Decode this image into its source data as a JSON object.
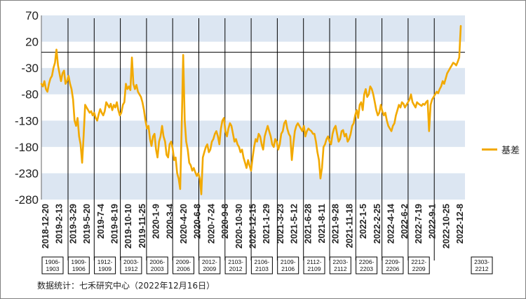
{
  "chart_data": {
    "type": "line",
    "ylim": [
      -280,
      70
    ],
    "yticks": [
      70,
      20,
      -30,
      -80,
      -130,
      -180,
      -230,
      -280
    ],
    "bands": [
      [
        20,
        70
      ],
      [
        -80,
        -30
      ],
      [
        -180,
        -130
      ],
      [
        -280,
        -230
      ]
    ],
    "zero_line": true,
    "x_tick_labels": [
      "2018-12-20",
      "2019-2-13",
      "2019-3-29",
      "2019-5-20",
      "2019-7-4",
      "2019-8-19",
      "2019-10-10",
      "2019-11-25",
      "2020-1-9",
      "2020-3-4",
      "2020-4-20",
      "2020-6-8",
      "2020-7-24",
      "2020-9-8",
      "2020-10-30",
      "2020-12-15",
      "2021-1-29",
      "2021-3-23",
      "2021-5-12",
      "2021-6-28",
      "2021-8-11",
      "2021-9-28",
      "2021-11-18",
      "2022-1-5",
      "2022-2-25",
      "2022-4-14",
      "2022-6-2",
      "2022-7-19",
      "2022-9-1",
      "2022-10-25",
      "2022-12-8"
    ],
    "contracts": [
      "1906-1903",
      "1909-1906",
      "1912-1909",
      "2003-1912",
      "2006-2003",
      "2009-2006",
      "2012-2009",
      "2103-2012",
      "2106-2103",
      "2109-2106",
      "2112-2109",
      "2203-2112",
      "2206-2203",
      "2209-2206",
      "2212-2209",
      "2303-2212"
    ],
    "series": [
      {
        "name": "基差",
        "color": "#F2A900",
        "values": [
          -60,
          -65,
          -55,
          -70,
          -75,
          -60,
          -50,
          -45,
          -30,
          -20,
          5,
          -25,
          -40,
          -55,
          -40,
          -35,
          -60,
          -55,
          -45,
          -60,
          -70,
          -90,
          -130,
          -140,
          -125,
          -160,
          -175,
          -210,
          -160,
          -100,
          -105,
          -110,
          -115,
          -112,
          -120,
          -115,
          -125,
          -130,
          -118,
          -108,
          -115,
          -120,
          -112,
          -95,
          -100,
          -105,
          -98,
          -110,
          -100,
          -105,
          -95,
          -110,
          -120,
          -115,
          -100,
          -95,
          -60,
          -70,
          -65,
          -72,
          -10,
          -60,
          -70,
          -62,
          -75,
          -80,
          -85,
          -95,
          -110,
          -130,
          -145,
          -140,
          -165,
          -178,
          -160,
          -155,
          -185,
          -200,
          -170,
          -160,
          -140,
          -160,
          -170,
          -195,
          -200,
          -175,
          -170,
          -182,
          -205,
          -200,
          -230,
          -240,
          -260,
          -140,
          -5,
          -130,
          -170,
          -185,
          -210,
          -215,
          -225,
          -220,
          -228,
          -235,
          -230,
          -240,
          -270,
          -200,
          -190,
          -180,
          -175,
          -190,
          -185,
          -170,
          -165,
          -155,
          -150,
          -160,
          -175,
          -145,
          -130,
          -125,
          -150,
          -160,
          -145,
          -135,
          -140,
          -155,
          -170,
          -165,
          -175,
          -180,
          -190,
          -185,
          -200,
          -210,
          -220,
          -205,
          -215,
          -225,
          -200,
          -180,
          -165,
          -170,
          -155,
          -160,
          -175,
          -185,
          -160,
          -150,
          -140,
          -150,
          -160,
          -175,
          -180,
          -165,
          -170,
          -185,
          -175,
          -155,
          -150,
          -135,
          -130,
          -145,
          -155,
          -160,
          -205,
          -175,
          -150,
          -140,
          -135,
          -140,
          -145,
          -150,
          -140,
          -160,
          -150,
          -145,
          -148,
          -150,
          -155,
          -155,
          -170,
          -190,
          -205,
          -240,
          -220,
          -180,
          -175,
          -165,
          -160,
          -170,
          -175,
          -155,
          -145,
          -140,
          -155,
          -170,
          -165,
          -150,
          -148,
          -160,
          -155,
          -170,
          -165,
          -155,
          -140,
          -135,
          -120,
          -110,
          -125,
          -100,
          -95,
          -110,
          -80,
          -70,
          -85,
          -80,
          -65,
          -70,
          -80,
          -95,
          -110,
          -120,
          -115,
          -100,
          -112,
          -120,
          -115,
          -130,
          -140,
          -145,
          -150,
          -140,
          -135,
          -120,
          -110,
          -100,
          -105,
          -95,
          -98,
          -105,
          -100,
          -95,
          -90,
          -80,
          -95,
          -100,
          -105,
          -95,
          -98,
          -100,
          -102,
          -98,
          -100,
          -95,
          -92,
          -150,
          -100,
          -90,
          -85,
          -80,
          -75,
          -78,
          -70,
          -65,
          -55,
          -60,
          -50,
          -40,
          -35,
          -30,
          -25,
          -20,
          -22,
          -25,
          -18,
          -10,
          50
        ]
      }
    ]
  },
  "legend": {
    "label": "基差"
  },
  "source": "数据统计：七禾研究中心（2022年12月16日）"
}
